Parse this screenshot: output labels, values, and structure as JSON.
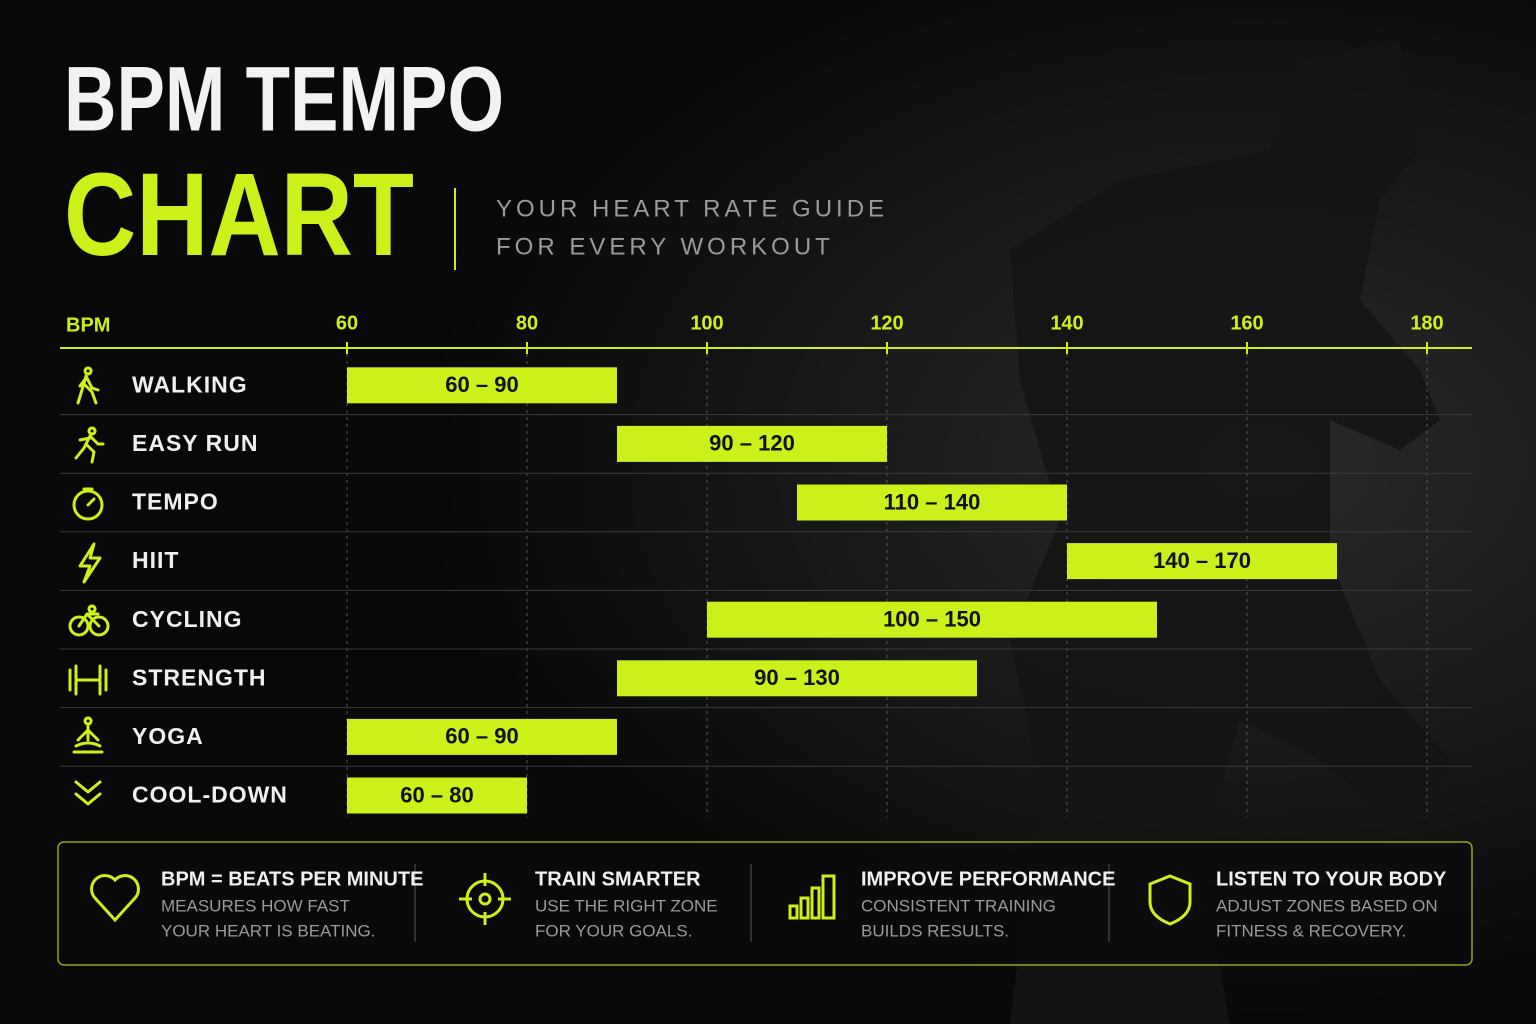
{
  "chart_data": {
    "type": "range-bar",
    "title": "BPM TEMPO",
    "title_highlight": "CHART",
    "subtitle": [
      "YOUR HEART RATE GUIDE",
      "FOR EVERY WORKOUT"
    ],
    "x_label": "BPM",
    "categories": [
      "WALKING",
      "EASY RUN",
      "TEMPO",
      "HIIT",
      "CYCLING",
      "STRENGTH",
      "YOGA",
      "COOL-DOWN"
    ],
    "ranges": [
      [
        60,
        90
      ],
      [
        90,
        120
      ],
      [
        110,
        140
      ],
      [
        140,
        170
      ],
      [
        100,
        150
      ],
      [
        90,
        130
      ],
      [
        60,
        90
      ],
      [
        60,
        80
      ]
    ],
    "value_labels": [
      "60 – 90",
      "90 – 120",
      "110 – 140",
      "140 – 170",
      "100 – 150",
      "90 – 130",
      "60 – 90",
      "60 – 80"
    ],
    "color": "#ccf019",
    "xlim": [
      60,
      185
    ],
    "xticks": [
      60,
      80,
      100,
      120,
      140,
      160,
      180
    ],
    "grid": true
  },
  "cards": [
    {
      "title": "BPM = BEATS PER MINUTE",
      "lines": [
        "MEASURES HOW FAST",
        "YOUR HEART IS BEATING."
      ]
    },
    {
      "title": "TRAIN SMARTER",
      "lines": [
        "USE THE RIGHT ZONE",
        "FOR YOUR GOALS."
      ]
    },
    {
      "title": "IMPROVE PERFORMANCE",
      "lines": [
        "CONSISTENT TRAINING",
        "BUILDS RESULTS."
      ]
    },
    {
      "title": "LISTEN TO YOUR BODY",
      "lines": [
        "ADJUST ZONES BASED ON",
        "FITNESS & RECOVERY."
      ]
    }
  ]
}
